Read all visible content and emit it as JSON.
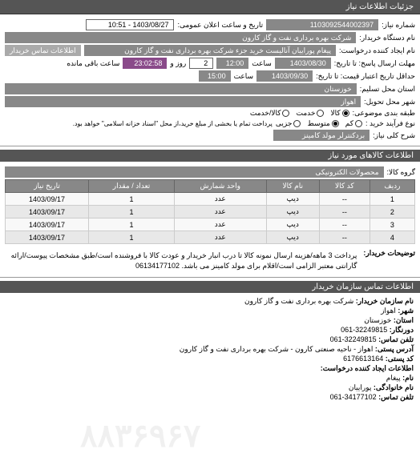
{
  "colors": {
    "header_bg": "#555555",
    "field_bg": "#888888",
    "border": "#999999",
    "row_even": "#e8e8e8",
    "row_odd": "#f8f8f8"
  },
  "header": {
    "title": "جزئیات اطلاعات نیاز"
  },
  "info": {
    "request_no_label": "شماره نیاز:",
    "request_no": "1103092544002397",
    "announce_label": "تاریخ و ساعت اعلان عمومی:",
    "announce_value": "1403/08/27 - 10:51",
    "buyer_label": "نام دستگاه خریدار:",
    "buyer_value": "شرکت بهره برداری نفت و گاز کارون",
    "requester_label": "نام ایجاد کننده درخواست:",
    "requester_value": "پیغام پوراییان آنالیست خرید جزء شرکت بهره برداری نفت و گاز کارون",
    "buyer_contact_btn": "اطلاعات تماس خریدار",
    "deadline_send_label": "مهلت ارسال پاسخ: تا تاریخ:",
    "deadline_send_date": "1403/08/30",
    "time_label": "ساعت",
    "deadline_send_time": "12:00",
    "days_label": "روز و",
    "days_value": "2",
    "remaining_label": "ساعت باقی مانده",
    "remaining_value": "23:02:58",
    "deadline_review_label": "حداقل تاریخ اعتبار قیمت: تا تاریخ:",
    "deadline_review_date": "1403/09/30",
    "deadline_review_time": "15:00",
    "province_label": "استان محل تسلیم:",
    "province_value": "خوزستان",
    "city_label": "شهر محل تحویل:",
    "city_value": "اهواز",
    "classification_label": "طبقه بندی موضوعی:",
    "class_opts": {
      "goods": "کالا",
      "service": "خدمت",
      "goods_service": "کالا/خدمت"
    },
    "class_selected": "goods",
    "priority_label": "نوع فرآیند خرید :",
    "priority_opts": {
      "low": "کم",
      "med": "متوسط",
      "high": "جزیی"
    },
    "priority_selected": "med",
    "priority_note": "پرداخت تمام یا بخشی از مبلغ خرید،از محل \"اسناد خزانه اسلامی\" خواهد بود.",
    "desc_label": "شرح کلی نیاز:",
    "desc_value": "بردکنترلر مولد کامینز"
  },
  "goods": {
    "header": "اطلاعات کالاهای مورد نیاز",
    "group_label": "گروه کالا:",
    "group_value": "محصولات الکترونیکی",
    "columns": [
      "ردیف",
      "کد کالا",
      "نام کالا",
      "واحد شمارش",
      "تعداد / مقدار",
      "تاریخ نیاز"
    ],
    "rows": [
      [
        "1",
        "--",
        "دیپ",
        "عدد",
        "1",
        "1403/09/17"
      ],
      [
        "2",
        "--",
        "دیپ",
        "عدد",
        "1",
        "1403/09/17"
      ],
      [
        "3",
        "--",
        "دیپ",
        "عدد",
        "1",
        "1403/09/17"
      ],
      [
        "4",
        "--",
        "دیپ",
        "عدد",
        "1",
        "1403/09/17"
      ]
    ],
    "notes_label": "توضیحات خریدار:",
    "notes_value": "پرداخت 3 ماهه/هزینه ارسال نمونه کالا تا درب انبار خریدار و عودت کالا با فروشنده است/طبق مشخصات پیوست/ارائه گارانتی معتبر الزامی است/اقلام برای مولد کامینز می باشد.  06134177102"
  },
  "contact": {
    "header": "اطلاعات تماس سازمان خریدار",
    "org_label": "نام سازمان خریدار:",
    "org_value": "شرکت بهره برداری نفت و گاز کارون",
    "city_label": "شهر:",
    "city_value": "اهواز",
    "province_label": "استان:",
    "province_value": "خوزستان",
    "fax_label": "دورنگار:",
    "fax_value": "32249815-061",
    "phone_label": "تلفن تماس:",
    "phone_value": "32249815-061",
    "address_label": "آدرس پستی:",
    "address_value": "اهواز - ناحیه صنعتی کارون - شرکت بهره برداری نفت و گاز کارون",
    "postal_label": "کد پستی:",
    "postal_value": "6176613164",
    "creator_header": "اطلاعات ایجاد کننده درخواست:",
    "name_label": "نام:",
    "name_value": "پیغام",
    "family_label": "نام خانوادگی:",
    "family_value": "پوراییان",
    "creator_phone_label": "تلفن تماس:",
    "creator_phone_value": "34177102-061"
  },
  "watermark": "۸۸۳۶۹۶۷"
}
